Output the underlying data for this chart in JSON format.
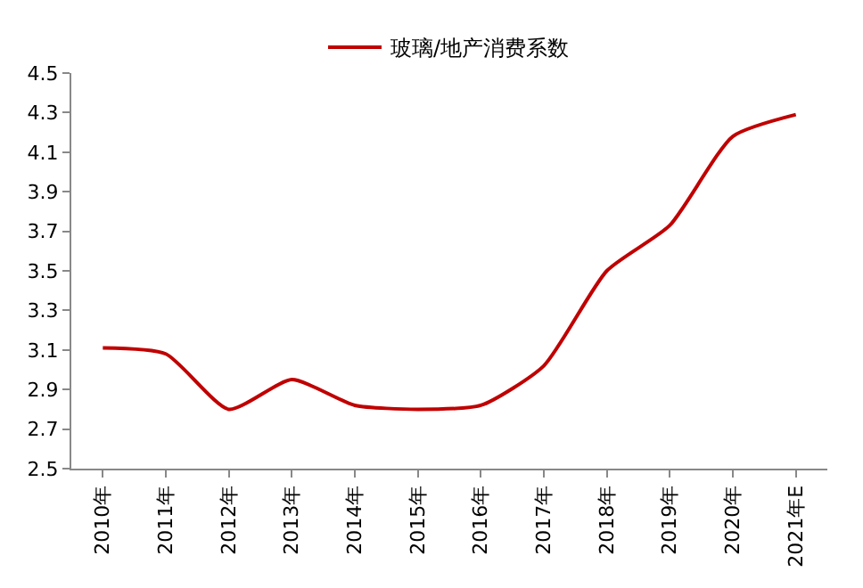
{
  "chart_data": {
    "type": "line",
    "categories": [
      "2010年",
      "2011年",
      "2012年",
      "2013年",
      "2014年",
      "2015年",
      "2016年",
      "2017年",
      "2018年",
      "2019年",
      "2020年",
      "2021年E"
    ],
    "series": [
      {
        "name": "玻璃/地产消费系数",
        "color": "#c00000",
        "values": [
          3.11,
          3.08,
          2.8,
          2.95,
          2.82,
          2.8,
          2.82,
          3.02,
          3.5,
          3.73,
          4.18,
          4.29
        ]
      }
    ],
    "ylim": [
      2.5,
      4.5
    ],
    "yticks": [
      2.5,
      2.7,
      2.9,
      3.1,
      3.3,
      3.5,
      3.7,
      3.9,
      4.1,
      4.3,
      4.5
    ],
    "legend": "top",
    "marker": "none",
    "line_style": "solid"
  }
}
